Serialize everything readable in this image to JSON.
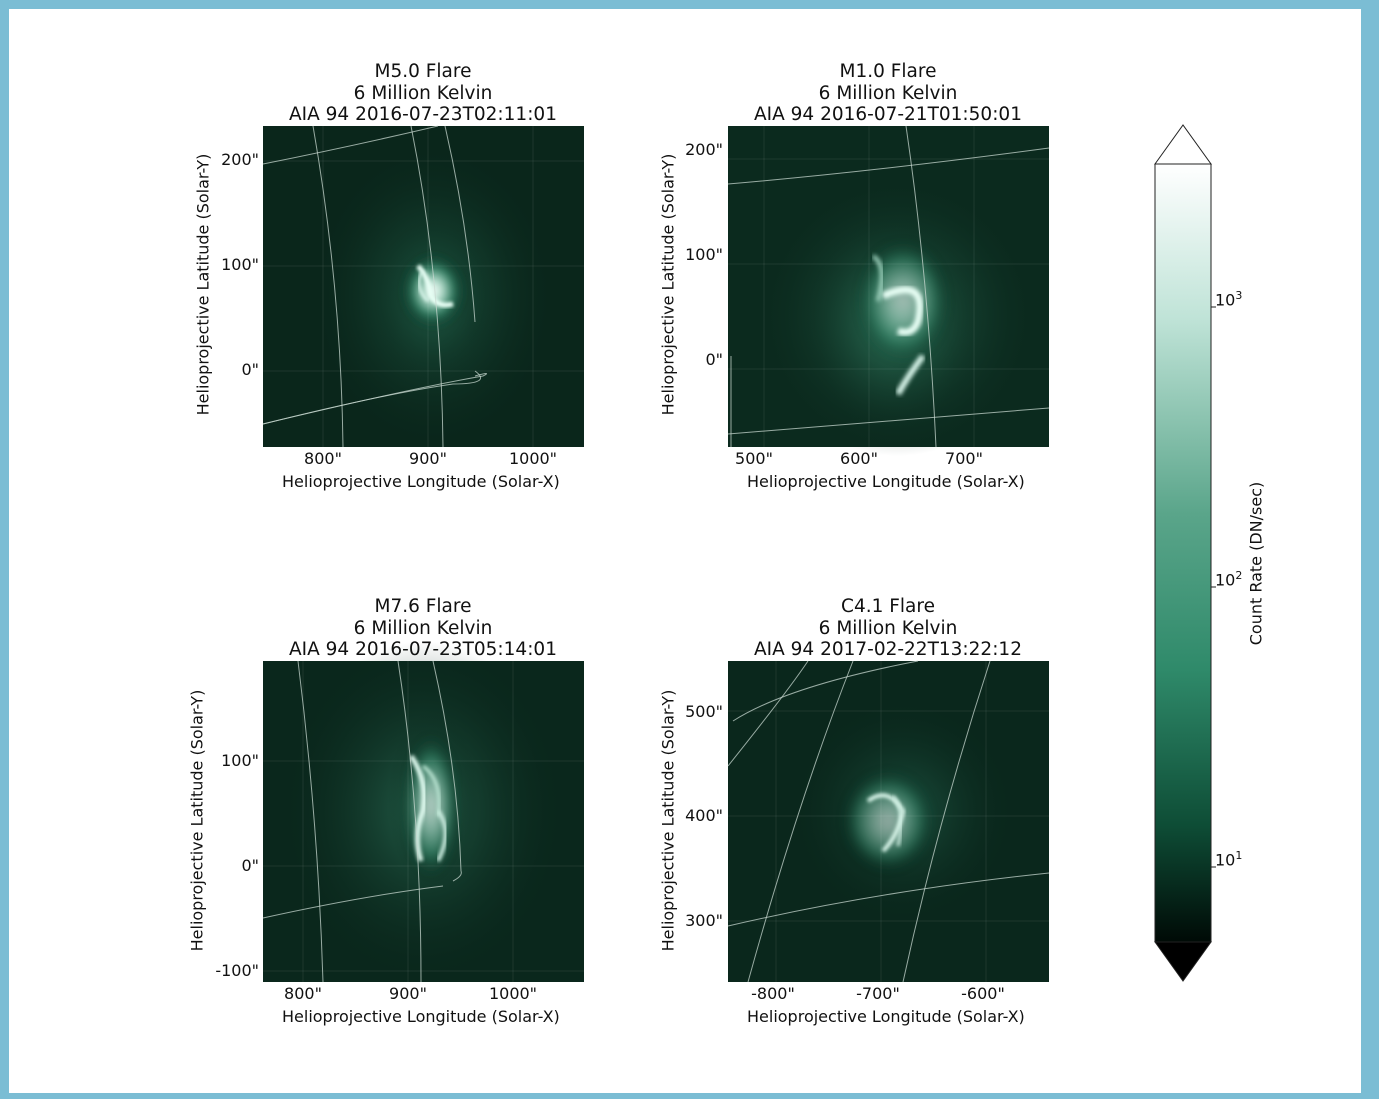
{
  "panels": [
    {
      "title": [
        "M5.0 Flare",
        "6 Million Kelvin",
        "AIA 94 2016-07-23T02:11:01"
      ],
      "xlabel": "Helioprojective Longitude (Solar-X)",
      "ylabel": "Helioprojective Latitude (Solar-Y)",
      "xticks": [
        "800\"",
        "900\"",
        "1000\""
      ],
      "yticks": [
        "200\"",
        "100\"",
        "0\""
      ]
    },
    {
      "title": [
        "M1.0 Flare",
        "6 Million Kelvin",
        "AIA 94 2016-07-21T01:50:01"
      ],
      "xlabel": "Helioprojective Longitude (Solar-X)",
      "ylabel": "Helioprojective Latitude (Solar-Y)",
      "xticks": [
        "500\"",
        "600\"",
        "700\""
      ],
      "yticks": [
        "200\"",
        "100\"",
        "0\""
      ]
    },
    {
      "title": [
        "M7.6 Flare",
        "6 Million Kelvin",
        "AIA 94 2016-07-23T05:14:01"
      ],
      "xlabel": "Helioprojective Longitude (Solar-X)",
      "ylabel": "Helioprojective Latitude (Solar-Y)",
      "xticks": [
        "800\"",
        "900\"",
        "1000\""
      ],
      "yticks": [
        "100\"",
        "0\"",
        "-100\""
      ]
    },
    {
      "title": [
        "C4.1 Flare",
        "6 Million Kelvin",
        "AIA 94 2017-02-22T13:22:12"
      ],
      "xlabel": "Helioprojective Longitude (Solar-X)",
      "ylabel": "Helioprojective Latitude (Solar-Y)",
      "xticks": [
        "-800\"",
        "-700\"",
        "-600\""
      ],
      "yticks": [
        "500\"",
        "400\"",
        "300\""
      ]
    }
  ],
  "colorbar": {
    "label": "Count Rate (DN/sec)",
    "ticks": [
      {
        "base": "10",
        "exp": "3"
      },
      {
        "base": "10",
        "exp": "2"
      },
      {
        "base": "10",
        "exp": "1"
      }
    ],
    "colors": {
      "low": "#000a06",
      "mid": "#2f8a6a",
      "high": "#ffffff"
    }
  },
  "colors": {
    "frame": "#7bbdd4",
    "background": "#ffffff"
  }
}
